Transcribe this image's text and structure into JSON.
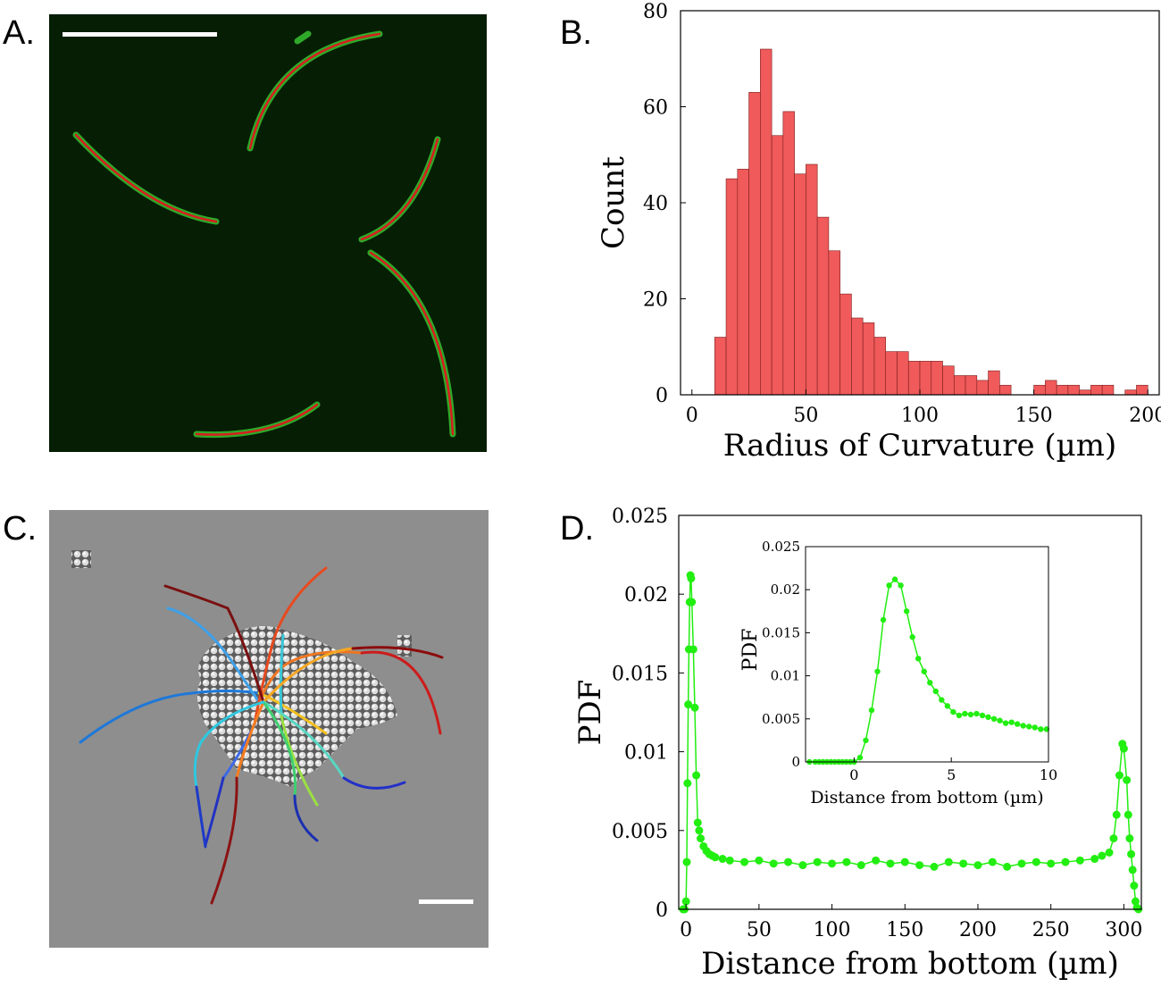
{
  "panels": {
    "a_label": "A.",
    "b_label": "B.",
    "c_label": "C.",
    "d_label": "D."
  },
  "chart_data": [
    {
      "id": "B",
      "type": "bar",
      "xlabel": "Radius of Curvature (µm)",
      "ylabel": "Count",
      "xlim": [
        -5,
        205
      ],
      "ylim": [
        0,
        80
      ],
      "xticks": [
        0,
        50,
        100,
        150,
        200
      ],
      "yticks": [
        0,
        20,
        40,
        60,
        80
      ],
      "bin_width": 5,
      "bin_starts": [
        5,
        10,
        15,
        20,
        25,
        30,
        35,
        40,
        45,
        50,
        55,
        60,
        65,
        70,
        75,
        80,
        85,
        90,
        95,
        100,
        105,
        110,
        115,
        120,
        125,
        130,
        135,
        140,
        145,
        150,
        155,
        160,
        165,
        170,
        175,
        180,
        185,
        190,
        195
      ],
      "values": [
        0,
        12,
        45,
        47,
        63,
        72,
        54,
        59,
        46,
        48,
        37,
        30,
        21,
        16,
        15,
        12,
        9,
        9,
        7,
        7,
        7,
        6,
        4,
        4,
        3,
        5,
        2,
        0,
        0,
        2,
        3,
        2,
        2,
        1,
        2,
        2,
        0,
        1,
        2
      ],
      "bar_color": "#f05a5a",
      "grid": false
    },
    {
      "id": "D",
      "type": "line",
      "xlabel": "Distance from bottom (µm)",
      "ylabel": "PDF",
      "xlim": [
        -5,
        312
      ],
      "ylim": [
        0,
        0.025
      ],
      "xticks": [
        0,
        50,
        100,
        150,
        200,
        250,
        300
      ],
      "ytick_labels": [
        "0",
        "0.005",
        "0.01",
        "0.015",
        "0.02",
        "0.025"
      ],
      "line_color": "#22ee11",
      "marker": "circle",
      "series": [
        {
          "x": [
            -2,
            -1,
            0,
            0.5,
            1,
            1.5,
            2,
            2.5,
            3,
            3.5,
            4,
            5,
            6,
            7,
            8,
            9,
            10,
            12,
            14,
            16,
            18,
            20,
            25,
            30,
            40,
            50,
            60,
            70,
            80,
            90,
            100,
            110,
            120,
            130,
            140,
            150,
            160,
            170,
            180,
            190,
            200,
            210,
            220,
            230,
            240,
            250,
            260,
            270,
            280,
            285,
            290,
            293,
            295,
            297,
            299,
            300,
            302,
            303,
            304,
            305,
            306,
            307,
            308,
            309,
            310
          ],
          "y": [
            0,
            0,
            0.0005,
            0.003,
            0.008,
            0.013,
            0.0165,
            0.0195,
            0.0212,
            0.021,
            0.0195,
            0.0165,
            0.0128,
            0.0085,
            0.0055,
            0.005,
            0.0045,
            0.004,
            0.0037,
            0.0035,
            0.0034,
            0.0033,
            0.0032,
            0.0031,
            0.003,
            0.0031,
            0.0029,
            0.003,
            0.0028,
            0.003,
            0.0029,
            0.003,
            0.0028,
            0.0031,
            0.0029,
            0.003,
            0.0028,
            0.0027,
            0.003,
            0.0029,
            0.0028,
            0.003,
            0.0027,
            0.0029,
            0.003,
            0.0029,
            0.003,
            0.0031,
            0.0032,
            0.0034,
            0.0036,
            0.0045,
            0.006,
            0.0085,
            0.0105,
            0.0102,
            0.0082,
            0.006,
            0.0045,
            0.0035,
            0.0025,
            0.0015,
            0.0005,
            0.0001,
            0
          ]
        }
      ],
      "inset": {
        "xlabel": "Distance from bottom (µm)",
        "ylabel": "PDF",
        "xlim": [
          -2.5,
          10
        ],
        "ylim": [
          0,
          0.025
        ],
        "xticks": [
          0,
          5,
          10
        ],
        "ytick_labels": [
          "0",
          "0.005",
          "0.01",
          "0.015",
          "0.02",
          "0.025"
        ],
        "x": [
          -2.3,
          -2,
          -1.8,
          -1.6,
          -1.4,
          -1.2,
          -1,
          -0.8,
          -0.6,
          -0.4,
          -0.2,
          0,
          0.3,
          0.6,
          0.9,
          1.2,
          1.5,
          1.8,
          2.1,
          2.4,
          2.7,
          3,
          3.3,
          3.6,
          3.9,
          4.2,
          4.5,
          4.8,
          5.1,
          5.4,
          5.7,
          6,
          6.3,
          6.6,
          6.9,
          7.2,
          7.5,
          7.8,
          8.1,
          8.4,
          8.7,
          9,
          9.3,
          9.6,
          9.9
        ],
        "y": [
          0,
          0,
          0,
          0,
          0,
          0,
          0,
          0,
          0,
          0,
          0,
          0,
          0.0005,
          0.0025,
          0.006,
          0.0105,
          0.0165,
          0.0205,
          0.0212,
          0.0205,
          0.0175,
          0.0145,
          0.012,
          0.0105,
          0.0092,
          0.0082,
          0.0072,
          0.0065,
          0.0058,
          0.0054,
          0.0056,
          0.0055,
          0.0056,
          0.0054,
          0.0052,
          0.005,
          0.0048,
          0.0045,
          0.0046,
          0.0044,
          0.0042,
          0.0041,
          0.004,
          0.0038,
          0.0038
        ]
      }
    }
  ]
}
